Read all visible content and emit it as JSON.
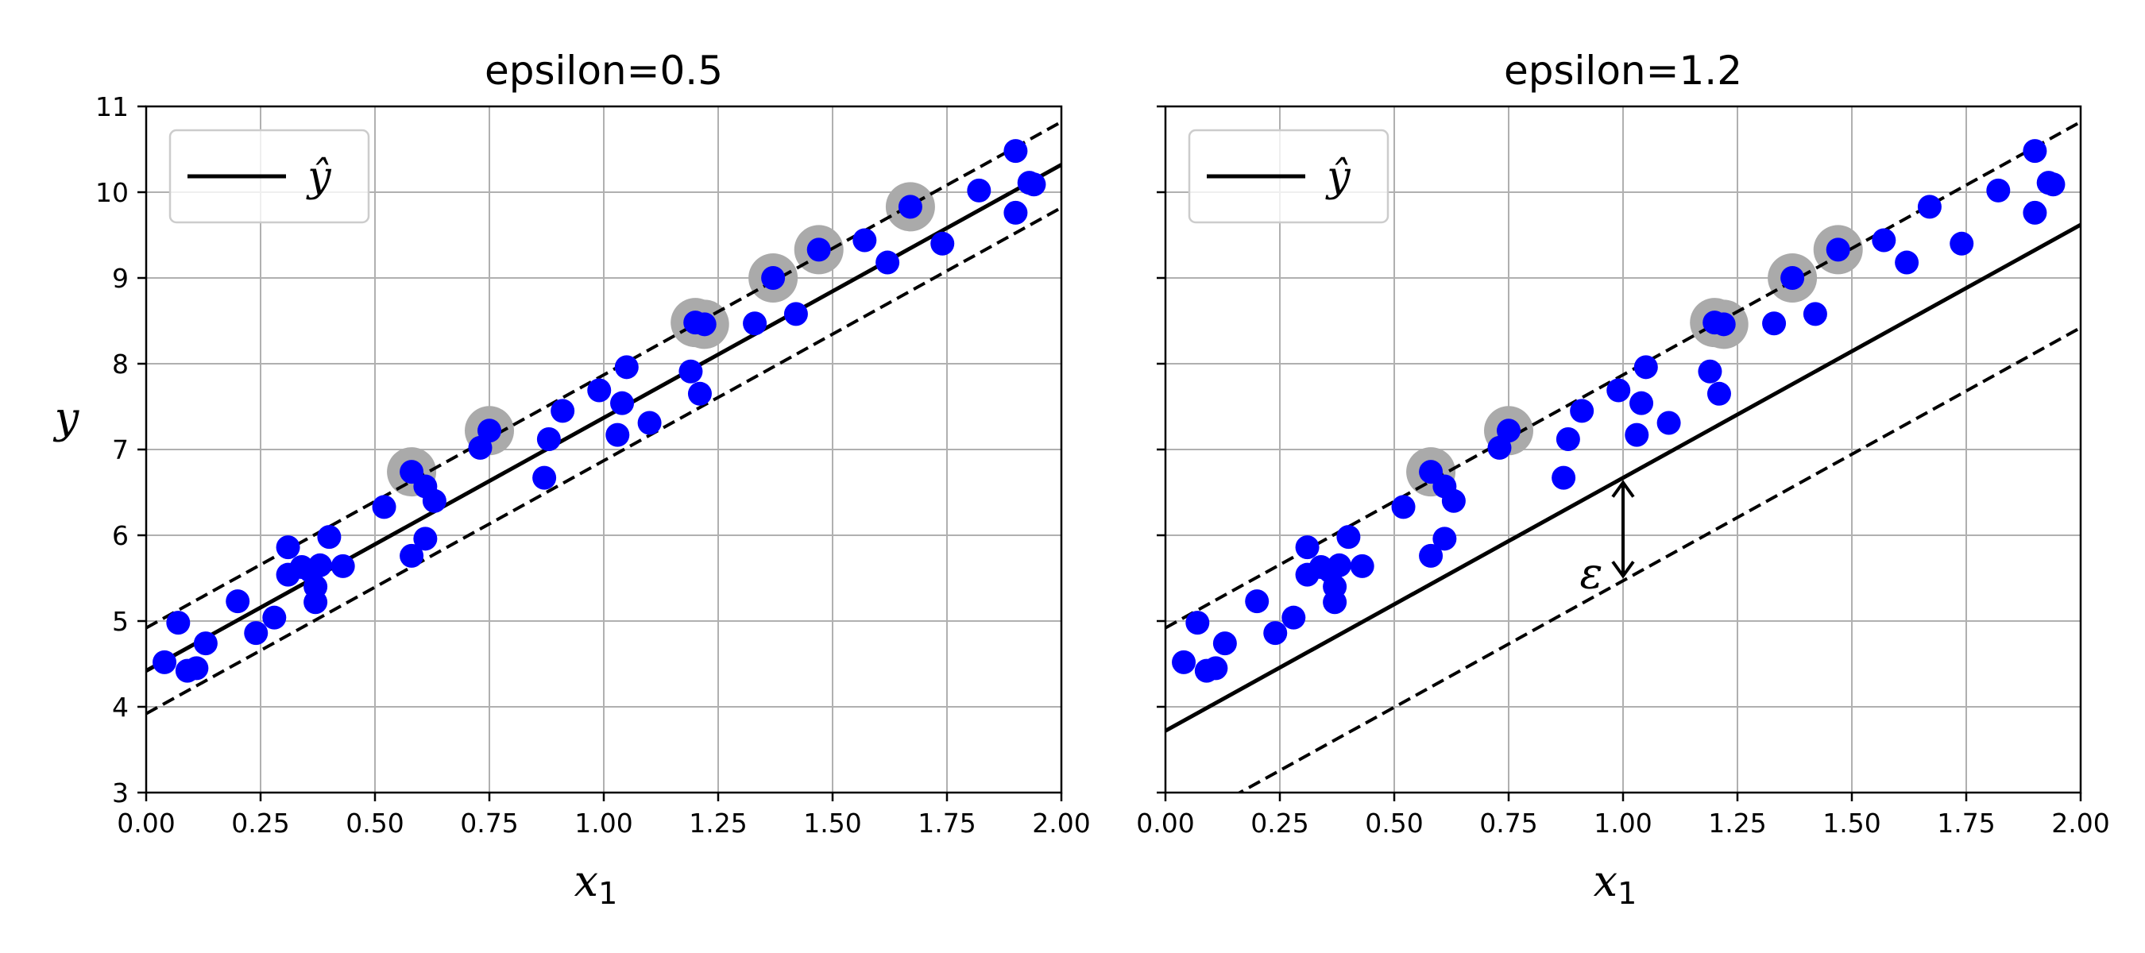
{
  "colors": {
    "point": "#0000ff",
    "support": "#aaaaaa",
    "line": "#000000",
    "grid": "#b0b0b0"
  },
  "chart_data": [
    {
      "type": "scatter",
      "title": "epsilon=0.5",
      "epsilon": 0.5,
      "xlabel": "x",
      "xlabel_sub": "1",
      "ylabel": "y",
      "xlim": [
        0,
        2
      ],
      "ylim": [
        3,
        11
      ],
      "xticks": [
        "0.00",
        "0.25",
        "0.50",
        "0.75",
        "1.00",
        "1.25",
        "1.50",
        "1.75",
        "2.00"
      ],
      "yticks": [
        "3",
        "4",
        "5",
        "6",
        "7",
        "8",
        "9",
        "10",
        "11"
      ],
      "grid": true,
      "legend": {
        "label": "ŷ",
        "placement": "upper-left"
      },
      "prediction": {
        "intercept": 4.42,
        "slope": 2.95
      },
      "support_x": [
        0.58,
        0.75,
        1.2,
        1.22,
        1.37,
        1.47,
        1.67
      ],
      "series": [
        {
          "values": [
            [
              0.04,
              4.52
            ],
            [
              0.07,
              4.98
            ],
            [
              0.09,
              4.42
            ],
            [
              0.11,
              4.45
            ],
            [
              0.13,
              4.74
            ],
            [
              0.2,
              5.23
            ],
            [
              0.24,
              4.86
            ],
            [
              0.28,
              5.04
            ],
            [
              0.31,
              5.86
            ],
            [
              0.31,
              5.54
            ],
            [
              0.34,
              5.63
            ],
            [
              0.36,
              5.58
            ],
            [
              0.37,
              5.4
            ],
            [
              0.37,
              5.22
            ],
            [
              0.38,
              5.65
            ],
            [
              0.4,
              5.98
            ],
            [
              0.43,
              5.64
            ],
            [
              0.52,
              6.33
            ],
            [
              0.58,
              6.74
            ],
            [
              0.58,
              5.76
            ],
            [
              0.61,
              6.57
            ],
            [
              0.61,
              5.96
            ],
            [
              0.63,
              6.4
            ],
            [
              0.73,
              7.02
            ],
            [
              0.75,
              7.22
            ],
            [
              0.87,
              6.67
            ],
            [
              0.88,
              7.12
            ],
            [
              0.91,
              7.45
            ],
            [
              0.99,
              7.69
            ],
            [
              1.03,
              7.17
            ],
            [
              1.04,
              7.54
            ],
            [
              1.05,
              7.96
            ],
            [
              1.1,
              7.31
            ],
            [
              1.19,
              7.91
            ],
            [
              1.2,
              8.48
            ],
            [
              1.21,
              7.65
            ],
            [
              1.22,
              8.46
            ],
            [
              1.33,
              8.47
            ],
            [
              1.37,
              9.0
            ],
            [
              1.42,
              8.58
            ],
            [
              1.47,
              9.33
            ],
            [
              1.57,
              9.44
            ],
            [
              1.62,
              9.18
            ],
            [
              1.67,
              9.83
            ],
            [
              1.74,
              9.4
            ],
            [
              1.82,
              10.02
            ],
            [
              1.9,
              9.76
            ],
            [
              1.9,
              10.48
            ],
            [
              1.93,
              10.11
            ],
            [
              1.94,
              10.09
            ]
          ]
        }
      ]
    },
    {
      "type": "scatter",
      "title": "epsilon=1.2",
      "epsilon": 1.2,
      "xlabel": "x",
      "xlabel_sub": "1",
      "ylabel": "",
      "xlim": [
        0,
        2
      ],
      "ylim": [
        3,
        11
      ],
      "xticks": [
        "0.00",
        "0.25",
        "0.50",
        "0.75",
        "1.00",
        "1.25",
        "1.50",
        "1.75",
        "2.00"
      ],
      "yticks": [
        "3",
        "4",
        "5",
        "6",
        "7",
        "8",
        "9",
        "10",
        "11"
      ],
      "grid": true,
      "legend": {
        "label": "ŷ",
        "placement": "upper-left"
      },
      "prediction": {
        "intercept": 3.72,
        "slope": 2.95
      },
      "support_x": [
        0.58,
        0.75,
        1.2,
        1.22,
        1.37,
        1.47
      ],
      "annotation": {
        "text": "ε",
        "x": 1.0
      },
      "series": [
        {
          "values": [
            [
              0.04,
              4.52
            ],
            [
              0.07,
              4.98
            ],
            [
              0.09,
              4.42
            ],
            [
              0.11,
              4.45
            ],
            [
              0.13,
              4.74
            ],
            [
              0.2,
              5.23
            ],
            [
              0.24,
              4.86
            ],
            [
              0.28,
              5.04
            ],
            [
              0.31,
              5.86
            ],
            [
              0.31,
              5.54
            ],
            [
              0.34,
              5.63
            ],
            [
              0.36,
              5.58
            ],
            [
              0.37,
              5.4
            ],
            [
              0.37,
              5.22
            ],
            [
              0.38,
              5.65
            ],
            [
              0.4,
              5.98
            ],
            [
              0.43,
              5.64
            ],
            [
              0.52,
              6.33
            ],
            [
              0.58,
              6.74
            ],
            [
              0.58,
              5.76
            ],
            [
              0.61,
              6.57
            ],
            [
              0.61,
              5.96
            ],
            [
              0.63,
              6.4
            ],
            [
              0.73,
              7.02
            ],
            [
              0.75,
              7.22
            ],
            [
              0.87,
              6.67
            ],
            [
              0.88,
              7.12
            ],
            [
              0.91,
              7.45
            ],
            [
              0.99,
              7.69
            ],
            [
              1.03,
              7.17
            ],
            [
              1.04,
              7.54
            ],
            [
              1.05,
              7.96
            ],
            [
              1.1,
              7.31
            ],
            [
              1.19,
              7.91
            ],
            [
              1.2,
              8.48
            ],
            [
              1.21,
              7.65
            ],
            [
              1.22,
              8.46
            ],
            [
              1.33,
              8.47
            ],
            [
              1.37,
              9.0
            ],
            [
              1.42,
              8.58
            ],
            [
              1.47,
              9.33
            ],
            [
              1.57,
              9.44
            ],
            [
              1.62,
              9.18
            ],
            [
              1.67,
              9.83
            ],
            [
              1.74,
              9.4
            ],
            [
              1.82,
              10.02
            ],
            [
              1.9,
              9.76
            ],
            [
              1.9,
              10.48
            ],
            [
              1.93,
              10.11
            ],
            [
              1.94,
              10.09
            ]
          ]
        }
      ]
    }
  ]
}
